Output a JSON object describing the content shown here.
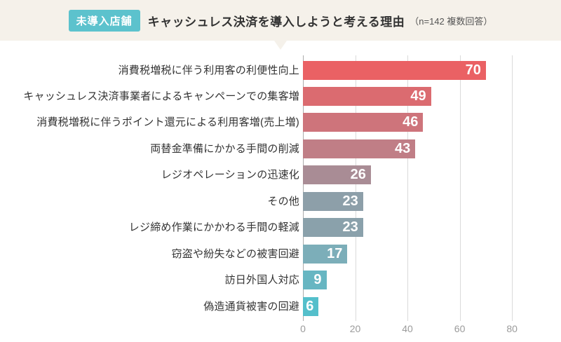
{
  "header": {
    "badge": "未導入店舗",
    "title": "キャッシュレス決済を導入しようと考える理由",
    "subtitle": "（n=142 複数回答）",
    "badge_color": "#5cc2cd",
    "strip_color": "#f5f1ea"
  },
  "chart_data": {
    "type": "bar",
    "orientation": "horizontal",
    "title": "キャッシュレス決済を導入しようと考える理由",
    "sample_note": "n=142 複数回答",
    "categories": [
      "消費税増税に伴う利用客の利便性向上",
      "キャッシュレス決済事業者によるキャンペーンでの集客増",
      "消費税増税に伴うポイント還元による利用客増(売上増)",
      "両替金準備にかかる手間の削減",
      "レジオペレーションの迅速化",
      "その他",
      "レジ締め作業にかかわる手間の軽減",
      "窃盗や紛失などの被害回避",
      "訪日外国人対応",
      "偽造通貨被害の回避"
    ],
    "values": [
      70,
      49,
      46,
      43,
      26,
      23,
      23,
      17,
      9,
      6
    ],
    "bar_colors": [
      "#ea6164",
      "#db6b70",
      "#ce747b",
      "#c07e86",
      "#a98c95",
      "#8d9fa9",
      "#8aa1ab",
      "#7caeb9",
      "#67b6c2",
      "#54bfcb"
    ],
    "value_label_color": "#ffffff",
    "xlim": [
      0,
      80
    ],
    "x_ticks": [
      0,
      20,
      40,
      60,
      80
    ],
    "grid": true,
    "legend": "none"
  }
}
